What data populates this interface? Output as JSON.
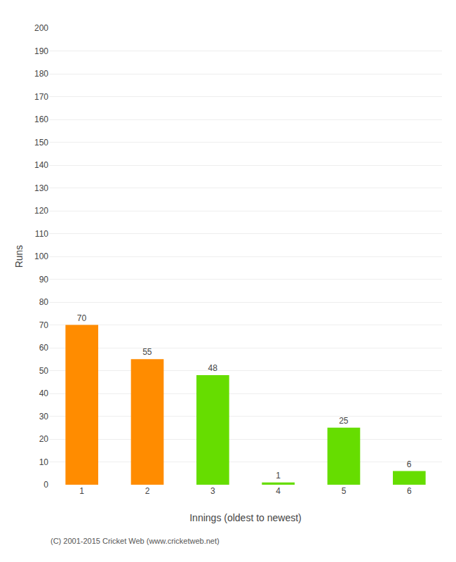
{
  "chart_data": {
    "type": "bar",
    "categories": [
      1,
      2,
      3,
      4,
      5,
      6
    ],
    "values": [
      70,
      55,
      48,
      1,
      25,
      6
    ],
    "colors": [
      "#FF8C00",
      "#FF8C00",
      "#66DD00",
      "#66DD00",
      "#66DD00",
      "#66DD00"
    ],
    "xlabel": "Innings (oldest to newest)",
    "ylabel": "Runs",
    "ylim": [
      0,
      200
    ],
    "yticks": [
      0,
      10,
      20,
      30,
      40,
      50,
      60,
      70,
      80,
      90,
      100,
      110,
      120,
      130,
      140,
      150,
      160,
      170,
      180,
      190,
      200
    ],
    "grid": true,
    "data_labels": true,
    "annotations": [
      "(C) 2001-2015 Cricket Web (www.cricketweb.net)"
    ]
  }
}
